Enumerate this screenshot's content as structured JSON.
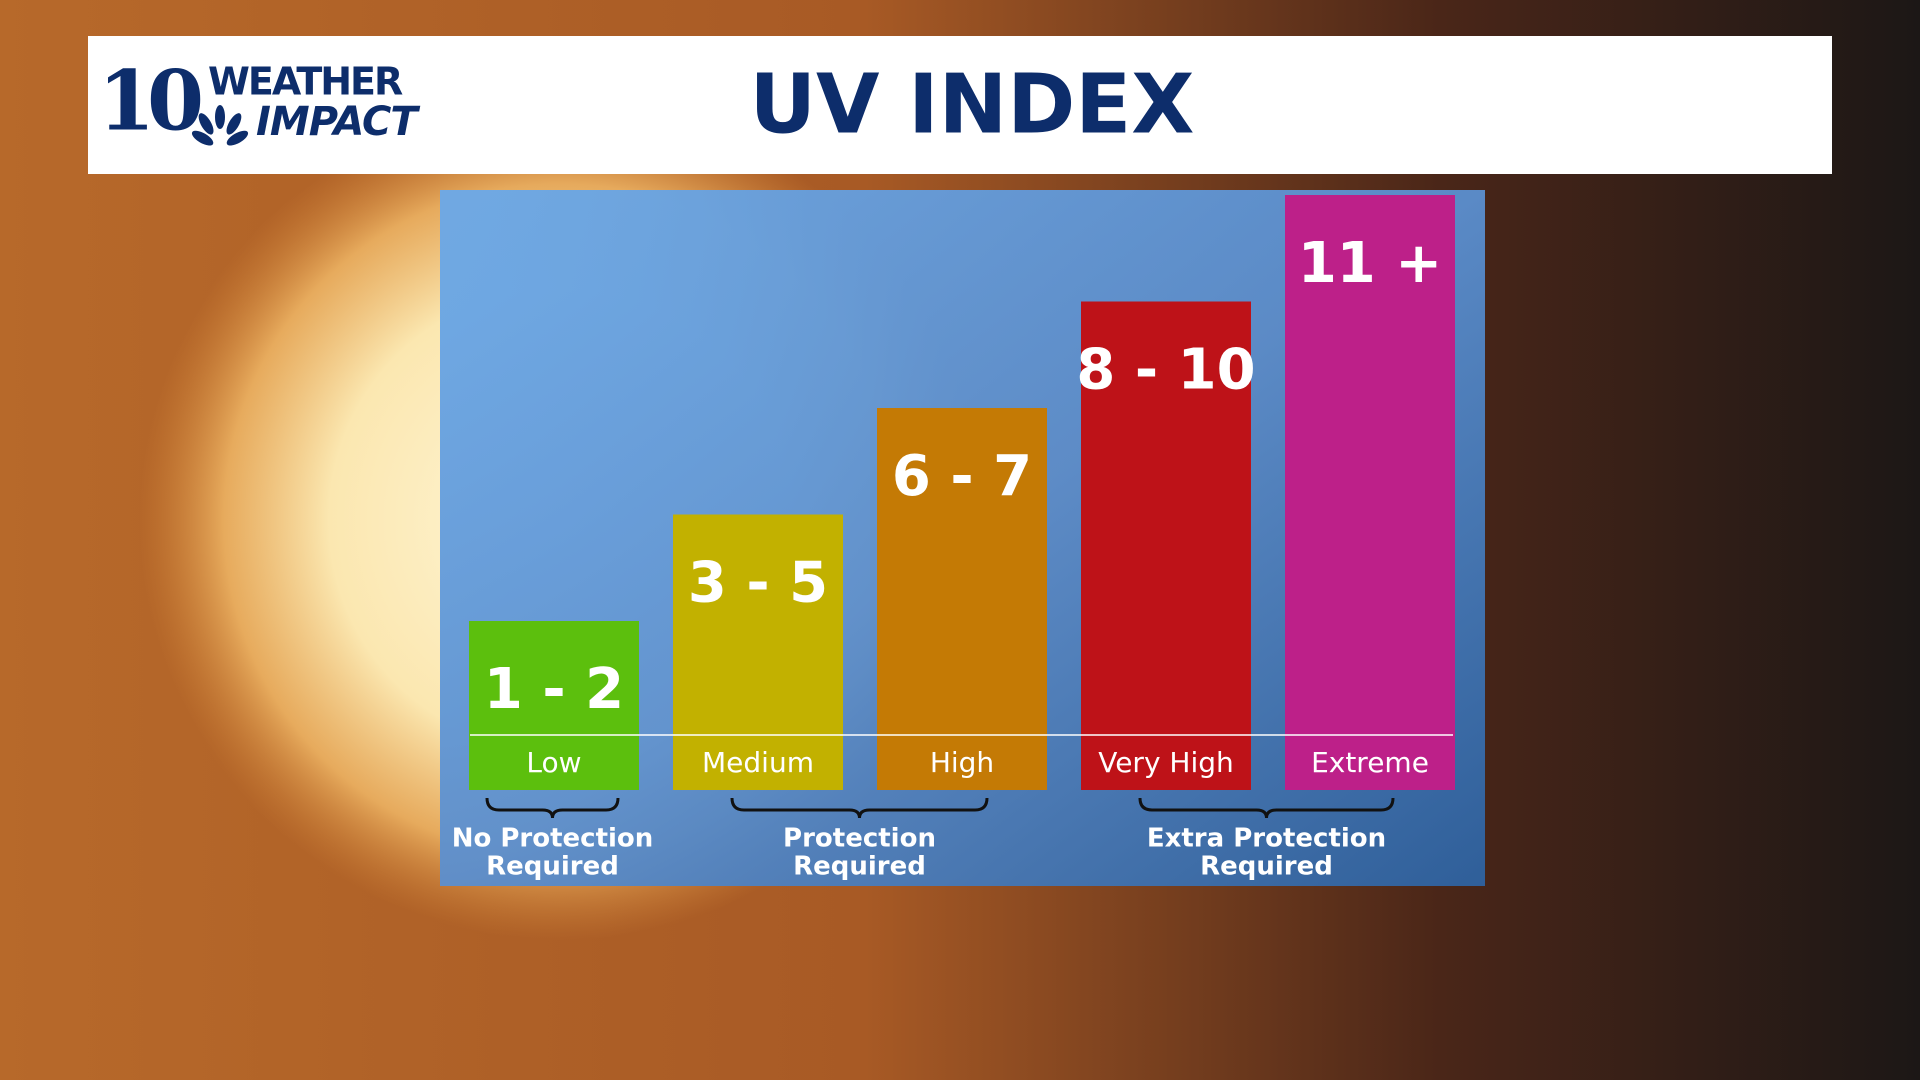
{
  "header": {
    "logo_number": "10",
    "logo_line1": "WEATHER",
    "logo_line2": "IMPACT",
    "title": "UV INDEX"
  },
  "bars": [
    {
      "range": "1 - 2",
      "level": "Low",
      "color": "#5cbf0d"
    },
    {
      "range": "3 - 5",
      "level": "Medium",
      "color": "#c2b100"
    },
    {
      "range": "6 - 7",
      "level": "High",
      "color": "#c47a05"
    },
    {
      "range": "8 - 10",
      "level": "Very High",
      "color": "#be1218"
    },
    {
      "range": "11 +",
      "level": "Extreme",
      "color": "#bd2089"
    }
  ],
  "groups": [
    {
      "lines": [
        "No Protection",
        "Required"
      ]
    },
    {
      "lines": [
        "Protection",
        "Required"
      ]
    },
    {
      "lines": [
        "Extra Protection",
        "Required"
      ]
    }
  ]
}
